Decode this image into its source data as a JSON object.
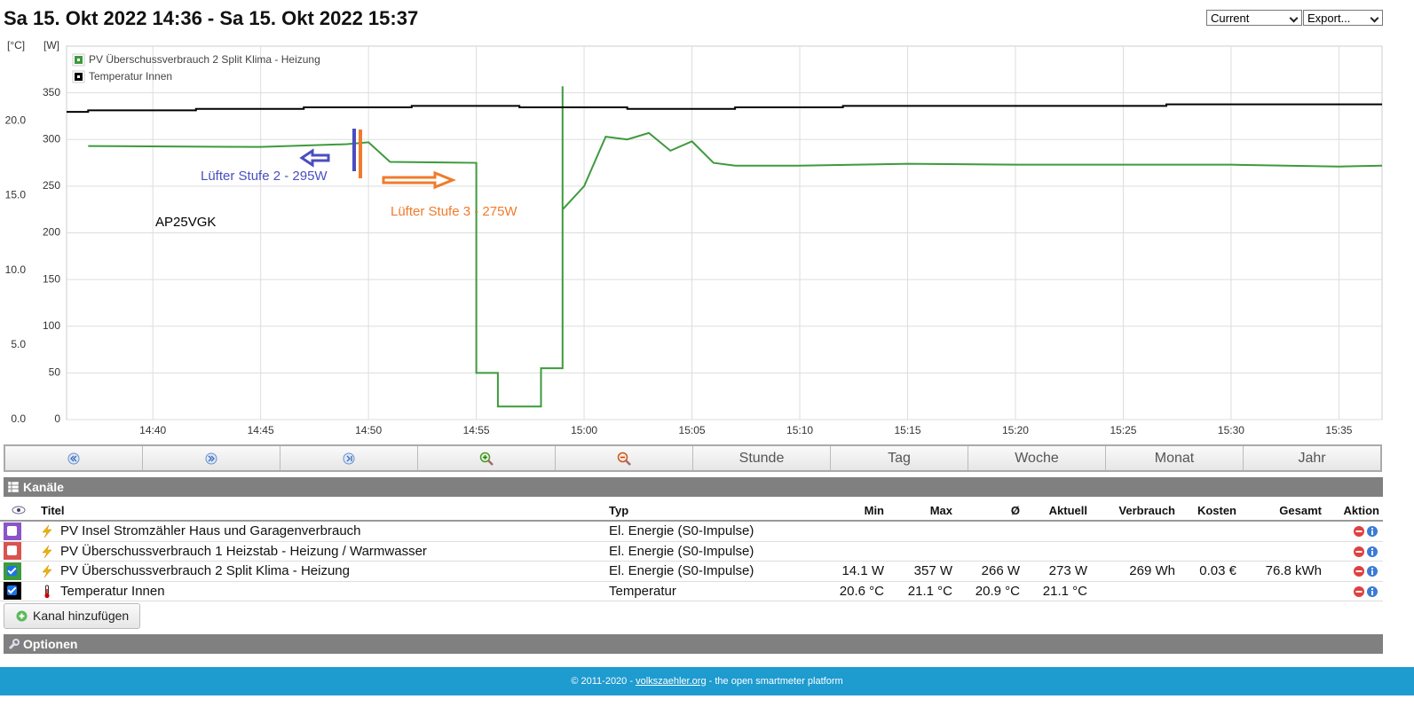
{
  "header": {
    "title": "Sa 15. Okt 2022 14:36 - Sa 15. Okt 2022 15:37",
    "selects": [
      "Current",
      "Export..."
    ]
  },
  "chart_data": {
    "type": "line",
    "y_label": "[W]",
    "y2_label": "[°C]",
    "xlim": [
      "14:36",
      "15:37"
    ],
    "xticks": [
      "14:40",
      "14:45",
      "14:50",
      "14:55",
      "15:00",
      "15:05",
      "15:10",
      "15:15",
      "15:20",
      "15:25",
      "15:30",
      "15:35"
    ],
    "ylim": [
      0,
      400
    ],
    "yticks": [
      0,
      50,
      100,
      150,
      200,
      250,
      300,
      350
    ],
    "y2lim": [
      0,
      25
    ],
    "y2ticks": [
      {
        "value": 0,
        "label": "0.0"
      },
      {
        "value": 5,
        "label": "5.0"
      },
      {
        "value": 10,
        "label": "10.0"
      },
      {
        "value": 15,
        "label": "15.0"
      },
      {
        "value": 20,
        "label": "20.0"
      }
    ],
    "grid": true,
    "legend": "upper left",
    "series": [
      {
        "name": "PV Überschussverbrauch 2 Split Klima - Heizung",
        "color": "#3d9a3d",
        "axis": "y",
        "x": [
          "14:37",
          "14:45",
          "14:49",
          "14:50",
          "14:51",
          "14:55",
          "14:55",
          "14:56",
          "14:56",
          "14:58",
          "14:58",
          "14:59",
          "14:59",
          "14:59",
          "15:00",
          "15:01",
          "15:02",
          "15:03",
          "15:04",
          "15:05",
          "15:06",
          "15:07",
          "15:10",
          "15:15",
          "15:20",
          "15:25",
          "15:30",
          "15:35",
          "15:37"
        ],
        "values": [
          293,
          292,
          295,
          297,
          276,
          275,
          50,
          50,
          14,
          14,
          55,
          55,
          357,
          225,
          250,
          303,
          300,
          307,
          288,
          298,
          275,
          272,
          272,
          274,
          273,
          273,
          273,
          271,
          272
        ]
      },
      {
        "name": "Temperatur Innen",
        "color": "#000000",
        "axis": "y2",
        "step": true,
        "x": [
          "14:36",
          "14:37",
          "14:42",
          "14:47",
          "14:52",
          "14:57",
          "15:02",
          "15:07",
          "15:12",
          "15:27",
          "15:37"
        ],
        "values": [
          20.6,
          20.7,
          20.8,
          20.9,
          21.0,
          20.9,
          20.8,
          20.9,
          21.0,
          21.1,
          21.1
        ]
      }
    ],
    "annotations": [
      {
        "text": "Lüfter Stufe 2 - 295W",
        "color": "#4a4ec0"
      },
      {
        "text": "Lüfter Stufe 3 - 275W",
        "color": "#f07b2c"
      },
      {
        "text": "AP25VGK",
        "color": "#000000"
      }
    ]
  },
  "navigation": {
    "buttons": [
      "Stunde",
      "Tag",
      "Woche",
      "Monat",
      "Jahr"
    ]
  },
  "channels": {
    "heading": "Kanäle",
    "columns": [
      "Titel",
      "Typ",
      "Min",
      "Max",
      "Ø",
      "Aktuell",
      "Verbrauch",
      "Kosten",
      "Gesamt",
      "Aktion"
    ],
    "rows": [
      {
        "color": "#8a55c8",
        "checked": false,
        "icon": "energy",
        "title": "PV Insel Stromzähler Haus und Garagenverbrauch",
        "type": "El. Energie (S0-Impulse)"
      },
      {
        "color": "#d9534f",
        "checked": false,
        "icon": "energy",
        "title": "PV Überschussverbrauch 1 Heizstab - Heizung / Warmwasser",
        "type": "El. Energie (S0-Impulse)"
      },
      {
        "color": "#3d9a3d",
        "checked": true,
        "icon": "energy",
        "title": "PV Überschussverbrauch 2 Split Klima - Heizung",
        "type": "El. Energie (S0-Impulse)",
        "min": "14.1 W",
        "max": "357 W",
        "avg": "266 W",
        "current": "273 W",
        "consumption": "269 Wh",
        "cost": "0.03 €",
        "total": "76.8 kWh"
      },
      {
        "color": "#000000",
        "checked": true,
        "icon": "temperature",
        "title": "Temperatur Innen",
        "type": "Temperatur",
        "min": "20.6 °C",
        "max": "21.1 °C",
        "avg": "20.9 °C",
        "current": "21.1 °C"
      }
    ]
  },
  "add_channel": "Kanal hinzufügen",
  "options": "Optionen",
  "footer": {
    "copyright": "© 2011-2020 -",
    "link": "volkszaehler.org",
    "tagline": "- the open smartmeter platform"
  }
}
